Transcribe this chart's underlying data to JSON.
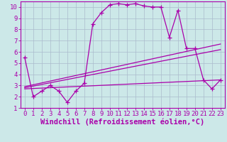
{
  "background_color": "#cce8e8",
  "grid_color": "#aabbcc",
  "line_color": "#aa00aa",
  "xlabel": "Windchill (Refroidissement éolien,°C)",
  "xlim": [
    -0.5,
    23.5
  ],
  "ylim": [
    1,
    10.5
  ],
  "xticks": [
    0,
    1,
    2,
    3,
    4,
    5,
    6,
    7,
    8,
    9,
    10,
    11,
    12,
    13,
    14,
    15,
    16,
    17,
    18,
    19,
    20,
    21,
    22,
    23
  ],
  "yticks": [
    1,
    2,
    3,
    4,
    5,
    6,
    7,
    8,
    9,
    10
  ],
  "line1_x": [
    0,
    1,
    2,
    3,
    4,
    5,
    6,
    7,
    8,
    9,
    10,
    11,
    12,
    13,
    14,
    15,
    16,
    17,
    18,
    19,
    20,
    21,
    22,
    23
  ],
  "line1_y": [
    5.5,
    2.0,
    2.5,
    3.0,
    2.5,
    1.5,
    2.5,
    3.2,
    8.5,
    9.5,
    10.2,
    10.3,
    10.2,
    10.3,
    10.1,
    10.0,
    10.0,
    7.3,
    9.7,
    6.3,
    6.3,
    3.5,
    2.7,
    3.5
  ],
  "line2_x": [
    0,
    23
  ],
  "line2_y": [
    2.8,
    6.2
  ],
  "line3_x": [
    0,
    23
  ],
  "line3_y": [
    2.9,
    6.7
  ],
  "line4_x": [
    0,
    23
  ],
  "line4_y": [
    2.7,
    3.5
  ],
  "tick_fontsize": 6.5,
  "label_fontsize": 7.5
}
